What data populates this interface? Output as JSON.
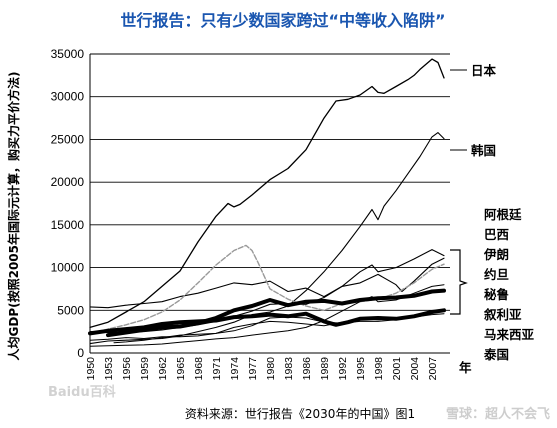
{
  "chart_data": {
    "type": "line",
    "title": "世行报告：只有少数国家跨过“中等收入陷阱”",
    "ylabel": "人均GDP(按照2005年国际元计算，购买力平价方法)",
    "xlabel": "年",
    "ylim": [
      0,
      35000
    ],
    "xlim": [
      1950,
      2010
    ],
    "yticks": [
      0,
      5000,
      10000,
      15000,
      20000,
      25000,
      30000,
      35000
    ],
    "xticks": [
      1950,
      1953,
      1956,
      1959,
      1962,
      1965,
      1968,
      1971,
      1974,
      1977,
      1980,
      1983,
      1986,
      1989,
      1992,
      1995,
      1998,
      2001,
      2004,
      2007
    ],
    "grid": "horizontal",
    "legend": "right",
    "group_label_list": [
      "阿根廷",
      "巴西",
      "伊朗",
      "约旦",
      "秘鲁",
      "叙利亚",
      "马来西亚",
      "泰国"
    ],
    "series": [
      {
        "name": "日本",
        "color": "#000000",
        "width": 1.3,
        "dash": "",
        "x": [
          1950,
          1953,
          1956,
          1959,
          1962,
          1965,
          1968,
          1971,
          1973,
          1974,
          1975,
          1977,
          1980,
          1983,
          1986,
          1989,
          1991,
          1993,
          1995,
          1997,
          1998,
          1999,
          2001,
          2003,
          2004,
          2005,
          2007,
          2008,
          2009
        ],
        "y": [
          3000,
          3600,
          4800,
          6000,
          7800,
          9600,
          13000,
          16000,
          17500,
          17100,
          17400,
          18500,
          20300,
          21600,
          23800,
          27500,
          29500,
          29700,
          30200,
          31200,
          30500,
          30400,
          31200,
          32000,
          32500,
          33200,
          34400,
          34000,
          32200
        ]
      },
      {
        "name": "韩国",
        "color": "#000000",
        "width": 1.1,
        "dash": "",
        "x": [
          1950,
          1953,
          1956,
          1959,
          1962,
          1965,
          1968,
          1971,
          1974,
          1977,
          1980,
          1983,
          1986,
          1989,
          1992,
          1995,
          1997,
          1998,
          1999,
          2001,
          2003,
          2005,
          2007,
          2008,
          2009
        ],
        "y": [
          1100,
          1400,
          1500,
          1600,
          1700,
          2000,
          2500,
          3000,
          3600,
          4500,
          4800,
          5500,
          7300,
          9500,
          12000,
          14800,
          16800,
          15600,
          17200,
          19000,
          21000,
          23000,
          25300,
          25800,
          25100
        ]
      },
      {
        "name": "阿根廷",
        "color": "#000000",
        "width": 1.1,
        "dash": "",
        "x": [
          1950,
          1953,
          1956,
          1959,
          1962,
          1965,
          1968,
          1971,
          1974,
          1977,
          1980,
          1983,
          1986,
          1989,
          1992,
          1995,
          1998,
          2001,
          2002,
          2004,
          2007,
          2009
        ],
        "y": [
          5400,
          5300,
          5600,
          5800,
          6000,
          6600,
          7000,
          7600,
          8200,
          8000,
          8400,
          7200,
          7600,
          6600,
          7800,
          8200,
          9200,
          8000,
          7200,
          8400,
          10400,
          11100
        ]
      },
      {
        "name": "伊朗",
        "color": "#999999",
        "width": 1.4,
        "dash": "5,2",
        "x": [
          1950,
          1953,
          1956,
          1959,
          1962,
          1965,
          1968,
          1971,
          1974,
          1976,
          1977,
          1978,
          1980,
          1983,
          1986,
          1989,
          1992,
          1995,
          1998,
          2001,
          2004,
          2007,
          2009
        ],
        "y": [
          2300,
          2800,
          3300,
          3900,
          4800,
          6200,
          8200,
          10300,
          12000,
          12600,
          12000,
          10600,
          7500,
          6300,
          5500,
          5000,
          5800,
          6000,
          6300,
          7000,
          8200,
          9800,
          10400
        ]
      },
      {
        "name": "马来西亚",
        "color": "#000000",
        "width": 1.1,
        "dash": "",
        "x": [
          1950,
          1953,
          1956,
          1959,
          1962,
          1965,
          1968,
          1971,
          1974,
          1977,
          1980,
          1983,
          1986,
          1989,
          1992,
          1995,
          1997,
          1998,
          2001,
          2004,
          2007,
          2009
        ],
        "y": [
          2500,
          2400,
          2400,
          2500,
          2700,
          3000,
          3300,
          3700,
          4300,
          4900,
          5700,
          5800,
          5700,
          6500,
          7800,
          9500,
          10300,
          9500,
          10000,
          11000,
          12100,
          11400
        ]
      },
      {
        "name": "巴西",
        "color": "#000000",
        "width": 4.0,
        "dash": "",
        "x": [
          1953,
          1956,
          1959,
          1962,
          1965,
          1968,
          1971,
          1974,
          1977,
          1980,
          1983,
          1986,
          1989,
          1992,
          1995,
          1998,
          2001,
          2004,
          2007,
          2009
        ],
        "y": [
          2100,
          2400,
          2700,
          3000,
          3100,
          3500,
          4100,
          5000,
          5500,
          6200,
          5600,
          6000,
          6100,
          5800,
          6200,
          6400,
          6500,
          6700,
          7200,
          7300
        ]
      },
      {
        "name": "秘鲁",
        "color": "#000000",
        "width": 4.0,
        "dash": "",
        "x": [
          1950,
          1953,
          1956,
          1959,
          1962,
          1965,
          1968,
          1971,
          1974,
          1977,
          1980,
          1983,
          1986,
          1989,
          1991,
          1993,
          1995,
          1998,
          2001,
          2004,
          2007,
          2009
        ],
        "y": [
          2300,
          2600,
          2800,
          3000,
          3400,
          3600,
          3700,
          3800,
          4200,
          4300,
          4500,
          4300,
          4600,
          3700,
          3300,
          3600,
          4000,
          4100,
          4000,
          4300,
          4800,
          5000
        ]
      },
      {
        "name": "泰国",
        "color": "#000000",
        "width": 1.0,
        "dash": "",
        "x": [
          1950,
          1953,
          1956,
          1959,
          1962,
          1965,
          1968,
          1971,
          1974,
          1977,
          1980,
          1983,
          1986,
          1989,
          1992,
          1995,
          1997,
          1998,
          2001,
          2004,
          2007,
          2009
        ],
        "y": [
          800,
          850,
          900,
          950,
          1050,
          1250,
          1450,
          1650,
          1800,
          2100,
          2350,
          2600,
          3000,
          3800,
          4900,
          6000,
          6600,
          6000,
          6200,
          7000,
          7800,
          8000
        ]
      },
      {
        "name": "约旦",
        "color": "#000000",
        "width": 1.0,
        "dash": "",
        "x": [
          1954,
          1956,
          1959,
          1962,
          1965,
          1968,
          1971,
          1974,
          1977,
          1980,
          1983,
          1986,
          1989,
          1992,
          1995,
          1998,
          2001,
          2004,
          2007,
          2009
        ],
        "y": [
          1200,
          1300,
          1500,
          1800,
          2100,
          2200,
          2300,
          2600,
          3200,
          4100,
          4200,
          4100,
          3600,
          3500,
          3700,
          3700,
          3900,
          4200,
          4700,
          4900
        ]
      },
      {
        "name": "叙利亚",
        "color": "#000000",
        "width": 1.0,
        "dash": "",
        "x": [
          1950,
          1953,
          1956,
          1959,
          1962,
          1965,
          1968,
          1971,
          1974,
          1977,
          1980,
          1983,
          1986,
          1989,
          1992,
          1995,
          1998,
          2001,
          2004,
          2007,
          2009
        ],
        "y": [
          1500,
          1600,
          1800,
          1700,
          1900,
          1900,
          2000,
          2300,
          3000,
          3400,
          3700,
          3600,
          3400,
          3200,
          3600,
          4000,
          3900,
          4000,
          4200,
          4500,
          4600
        ]
      }
    ],
    "source": "资料来源：世行报告《2030年的中国》图1",
    "watermarks": [
      "Baidu百科",
      "雪球：超人不会飞"
    ]
  }
}
